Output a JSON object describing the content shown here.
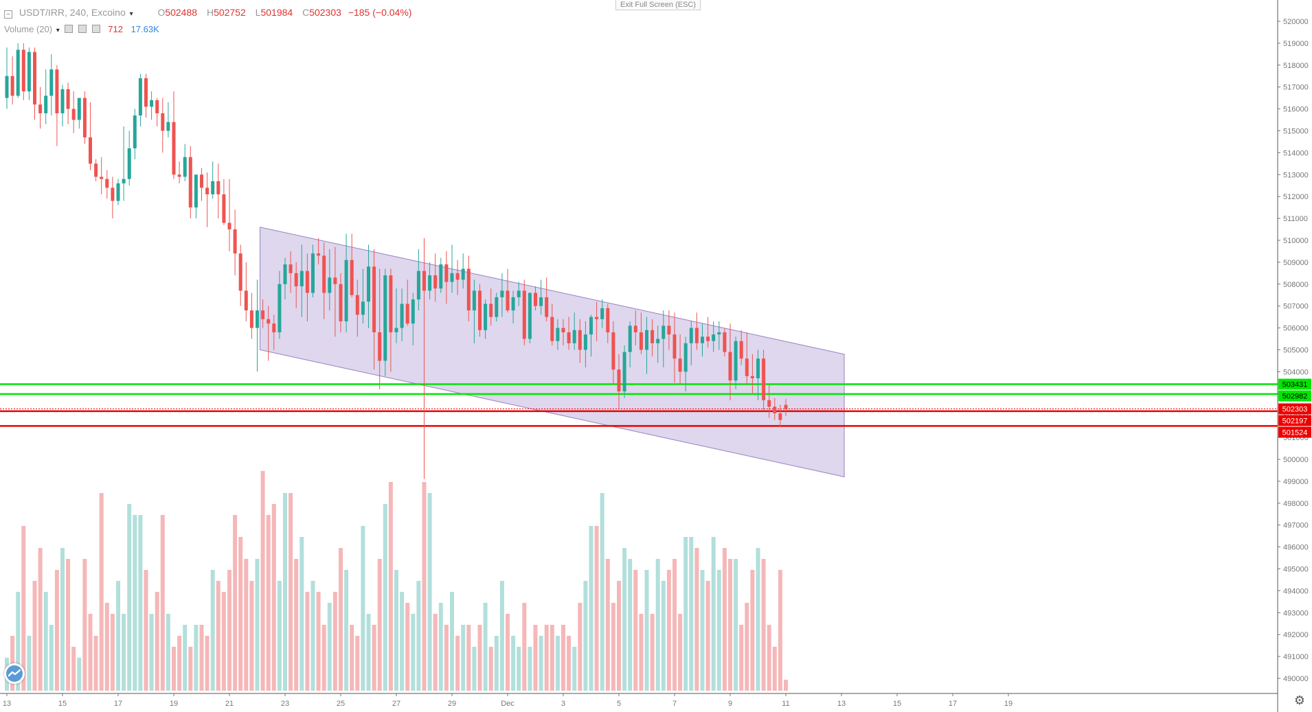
{
  "header": {
    "symbol": "USDT/IRR, 240, Excoino",
    "ohlc": {
      "o_key": "O",
      "o": "502488",
      "h_key": "H",
      "h": "502752",
      "l_key": "L",
      "l": "501984",
      "c_key": "C",
      "c": "502303"
    },
    "change": "−185 (−0.04%)",
    "volume_label": "Volume (20)",
    "volume_value": "712",
    "volume_ma": "17.63K"
  },
  "exit_fullscreen_label": "Exit Full Screen (ESC)",
  "icons": {
    "collapse": "collapse-icon",
    "chevron": "chevron-down-icon",
    "logo": "tradingview-logo-icon",
    "settings": "gear-icon"
  },
  "colors": {
    "up": "#26a69a",
    "down": "#ef5350",
    "vol_up": "#b2dfdb",
    "vol_down": "#f5b7b8",
    "channel_fill": "#d8d0ea",
    "channel_stroke": "#9680c0",
    "support_green": "#00e600",
    "resist_red": "#ee0000"
  },
  "chart_data": {
    "type": "candlestick",
    "symbol": "USDT/IRR",
    "timeframe": "240",
    "y_axis_ticks": [
      490000,
      491000,
      492000,
      493000,
      494000,
      495000,
      496000,
      497000,
      498000,
      499000,
      500000,
      501000,
      502000,
      503000,
      504000,
      505000,
      506000,
      507000,
      508000,
      509000,
      510000,
      511000,
      512000,
      513000,
      514000,
      515000,
      516000,
      517000,
      518000,
      519000,
      520000
    ],
    "x_axis_labels": [
      {
        "label": "13",
        "bar": 0
      },
      {
        "label": "15",
        "bar": 10
      },
      {
        "label": "17",
        "bar": 20
      },
      {
        "label": "19",
        "bar": 30
      },
      {
        "label": "21",
        "bar": 40
      },
      {
        "label": "23",
        "bar": 50
      },
      {
        "label": "25",
        "bar": 60
      },
      {
        "label": "27",
        "bar": 70
      },
      {
        "label": "29",
        "bar": 80
      },
      {
        "label": "Dec",
        "bar": 90
      },
      {
        "label": "3",
        "bar": 100
      },
      {
        "label": "5",
        "bar": 110
      },
      {
        "label": "7",
        "bar": 120
      },
      {
        "label": "9",
        "bar": 130
      },
      {
        "label": "11",
        "bar": 140
      },
      {
        "label": "13",
        "bar": 150
      },
      {
        "label": "15",
        "bar": 160
      },
      {
        "label": "17",
        "bar": 170
      },
      {
        "label": "19",
        "bar": 180
      }
    ],
    "price_labels": [
      {
        "value": 503431,
        "text": "503431",
        "color": "#00e600"
      },
      {
        "value": 502982,
        "text": "502982",
        "color": "#00e600"
      },
      {
        "value": 502303,
        "text": "502303",
        "color": "#ee0000"
      },
      {
        "value": 502197,
        "text": "502197",
        "color": "#ee0000"
      },
      {
        "value": 501524,
        "text": "501524",
        "color": "#ee0000"
      }
    ],
    "horizontal_lines": [
      {
        "value": 503431,
        "color": "#00e600"
      },
      {
        "value": 502982,
        "color": "#00e600"
      },
      {
        "value": 502197,
        "color": "#ee0000"
      },
      {
        "value": 501524,
        "color": "#ee0000"
      }
    ],
    "last_price_line": 502303,
    "channel": {
      "upper": [
        [
          45.5,
          510600
        ],
        [
          150.5,
          504800
        ]
      ],
      "lower": [
        [
          45.5,
          505000
        ],
        [
          150.5,
          499200
        ]
      ]
    },
    "candles": [
      [
        0,
        516500,
        518800,
        516000,
        517500,
        3
      ],
      [
        1,
        517500,
        518400,
        516200,
        516600,
        5
      ],
      [
        2,
        516600,
        519000,
        516500,
        518700,
        9
      ],
      [
        3,
        518700,
        519000,
        516400,
        516800,
        15
      ],
      [
        4,
        516800,
        518800,
        516400,
        518600,
        5
      ],
      [
        5,
        518600,
        518800,
        515500,
        516200,
        10
      ],
      [
        6,
        516200,
        517000,
        515100,
        515800,
        13
      ],
      [
        7,
        515800,
        517800,
        515300,
        516600,
        9
      ],
      [
        8,
        516600,
        518500,
        515700,
        517800,
        6
      ],
      [
        9,
        517800,
        518000,
        514300,
        515800,
        11
      ],
      [
        10,
        515800,
        517100,
        515200,
        516900,
        13
      ],
      [
        11,
        516900,
        517200,
        515300,
        516000,
        12
      ],
      [
        12,
        516000,
        516800,
        514900,
        515500,
        4
      ],
      [
        13,
        515500,
        516500,
        515100,
        516500,
        3
      ],
      [
        14,
        516500,
        516800,
        514400,
        514700,
        12
      ],
      [
        15,
        514700,
        516300,
        513200,
        513500,
        7
      ],
      [
        16,
        513500,
        513700,
        512700,
        512900,
        5
      ],
      [
        17,
        512900,
        513800,
        512100,
        512800,
        18
      ],
      [
        18,
        512800,
        513200,
        511900,
        512400,
        8
      ],
      [
        19,
        512400,
        512900,
        511000,
        511800,
        7
      ],
      [
        20,
        511800,
        512800,
        511600,
        512600,
        10
      ],
      [
        21,
        512600,
        515200,
        511800,
        512800,
        7
      ],
      [
        22,
        512800,
        515000,
        512500,
        514200,
        17
      ],
      [
        23,
        514200,
        516000,
        513700,
        515700,
        16
      ],
      [
        24,
        515700,
        517600,
        515200,
        517400,
        16
      ],
      [
        25,
        517400,
        517600,
        515600,
        516100,
        11
      ],
      [
        26,
        516100,
        516800,
        515500,
        516400,
        7
      ],
      [
        27,
        516400,
        516500,
        515200,
        515800,
        9
      ],
      [
        28,
        515800,
        516500,
        514000,
        515000,
        16
      ],
      [
        29,
        515000,
        516300,
        514700,
        515400,
        7
      ],
      [
        30,
        515400,
        516800,
        512800,
        513000,
        4
      ],
      [
        31,
        513000,
        513600,
        512600,
        512900,
        5
      ],
      [
        32,
        512900,
        514400,
        512700,
        513800,
        6
      ],
      [
        33,
        513800,
        514300,
        511000,
        511500,
        4
      ],
      [
        34,
        511500,
        513000,
        511000,
        513000,
        6
      ],
      [
        35,
        513000,
        513300,
        511800,
        512400,
        6
      ],
      [
        36,
        512400,
        513100,
        510600,
        512100,
        5
      ],
      [
        37,
        512100,
        513600,
        511900,
        512700,
        11
      ],
      [
        38,
        512700,
        513500,
        511000,
        512100,
        10
      ],
      [
        39,
        512100,
        512800,
        510700,
        510800,
        9
      ],
      [
        40,
        510800,
        512800,
        509500,
        510500,
        11
      ],
      [
        41,
        510500,
        511400,
        508400,
        509400,
        16
      ],
      [
        42,
        509400,
        509800,
        507000,
        507700,
        14
      ],
      [
        43,
        507700,
        509000,
        506300,
        506800,
        12
      ],
      [
        44,
        506800,
        507600,
        505500,
        506000,
        10
      ],
      [
        45,
        506000,
        508200,
        504000,
        506800,
        12
      ],
      [
        46,
        506800,
        507300,
        506000,
        506400,
        20
      ],
      [
        47,
        506400,
        507000,
        504500,
        506200,
        16
      ],
      [
        48,
        506200,
        506600,
        505000,
        505800,
        17
      ],
      [
        49,
        505800,
        508600,
        505500,
        508000,
        10
      ]
    ],
    "candles2": [
      [
        50,
        508000,
        509200,
        507300,
        508900,
        18
      ],
      [
        51,
        508900,
        509500,
        507600,
        508500,
        18
      ],
      [
        52,
        508500,
        509000,
        506900,
        507900,
        12
      ],
      [
        53,
        507900,
        509800,
        506500,
        508600,
        14
      ],
      [
        54,
        508600,
        509400,
        506300,
        507600,
        9
      ],
      [
        55,
        507600,
        509800,
        507400,
        509400,
        10
      ],
      [
        56,
        509400,
        510100,
        508900,
        509300,
        9
      ],
      [
        57,
        509300,
        509900,
        506400,
        507600,
        6
      ],
      [
        58,
        507600,
        509600,
        506800,
        508300,
        8
      ],
      [
        59,
        508300,
        509700,
        505600,
        508000,
        9
      ],
      [
        60,
        508000,
        508500,
        505800,
        506300,
        13
      ],
      [
        61,
        506300,
        510300,
        505800,
        509100,
        11
      ],
      [
        62,
        509100,
        510300,
        507400,
        507500,
        6
      ],
      [
        63,
        507500,
        508200,
        505600,
        506600,
        5
      ],
      [
        64,
        506600,
        508700,
        506200,
        507200,
        15
      ],
      [
        65,
        507200,
        509800,
        506000,
        508800,
        7
      ],
      [
        66,
        508800,
        509600,
        504100,
        505800,
        6
      ],
      [
        67,
        505800,
        508700,
        503200,
        504500,
        12
      ],
      [
        68,
        504500,
        508700,
        503800,
        508400,
        17
      ],
      [
        69,
        508400,
        508700,
        504000,
        505800,
        19
      ],
      [
        70,
        505800,
        507800,
        505300,
        506000,
        11
      ],
      [
        71,
        506000,
        507800,
        505400,
        507100,
        9
      ],
      [
        72,
        507100,
        508200,
        506100,
        506200,
        8
      ],
      [
        73,
        506200,
        507600,
        505200,
        507300,
        7
      ],
      [
        74,
        507300,
        509600,
        506800,
        508600,
        10
      ],
      [
        75,
        508600,
        510100,
        499100,
        507700,
        19
      ],
      [
        76,
        507700,
        509000,
        507300,
        508400,
        18
      ],
      [
        77,
        508400,
        509400,
        507200,
        507800,
        7
      ],
      [
        78,
        507800,
        509200,
        507600,
        508900,
        8
      ],
      [
        79,
        508900,
        509500,
        507100,
        508100,
        6
      ]
    ],
    "candles3": [
      [
        80,
        508100,
        509800,
        507600,
        508500,
        9
      ],
      [
        81,
        508500,
        509100,
        507500,
        508200,
        5
      ],
      [
        82,
        508200,
        509400,
        507800,
        508700,
        6
      ],
      [
        83,
        508700,
        509300,
        506300,
        506800,
        6
      ],
      [
        84,
        506800,
        508200,
        505300,
        507700,
        4
      ],
      [
        85,
        507700,
        508000,
        505600,
        505900,
        6
      ],
      [
        86,
        505900,
        507300,
        505500,
        507100,
        8
      ],
      [
        87,
        507100,
        507800,
        506100,
        506500,
        4
      ],
      [
        88,
        506500,
        507600,
        506300,
        507400,
        5
      ],
      [
        89,
        507400,
        508500,
        506500,
        507700,
        10
      ],
      [
        90,
        507700,
        508700,
        506700,
        506800,
        7
      ],
      [
        91,
        506800,
        507700,
        506200,
        507400,
        5
      ],
      [
        92,
        507400,
        508100,
        507000,
        507700,
        4
      ],
      [
        93,
        507700,
        508200,
        505200,
        505500,
        8
      ],
      [
        94,
        505500,
        507600,
        505300,
        507600,
        4
      ],
      [
        95,
        507600,
        507900,
        506800,
        507000,
        6
      ],
      [
        96,
        507000,
        508200,
        506600,
        507400,
        5
      ],
      [
        97,
        507400,
        508300,
        506300,
        506500,
        6
      ],
      [
        98,
        506500,
        507100,
        505200,
        505400,
        6
      ],
      [
        99,
        505400,
        506400,
        505000,
        506000,
        5
      ]
    ],
    "candles4": [
      [
        100,
        506000,
        506400,
        505200,
        505800,
        6
      ],
      [
        101,
        505800,
        506500,
        505000,
        505300,
        5
      ],
      [
        102,
        505300,
        506700,
        505000,
        505900,
        4
      ],
      [
        103,
        505900,
        506400,
        504400,
        505000,
        8
      ],
      [
        104,
        505000,
        506300,
        504200,
        505700,
        10
      ],
      [
        105,
        505700,
        506600,
        504700,
        506500,
        15
      ],
      [
        106,
        506500,
        507200,
        505400,
        506400,
        15
      ],
      [
        107,
        506400,
        507300,
        506000,
        506900,
        18
      ],
      [
        108,
        506900,
        507100,
        505300,
        505800,
        12
      ],
      [
        109,
        505800,
        506300,
        503400,
        504100,
        8
      ],
      [
        110,
        504100,
        504800,
        502300,
        503100,
        10
      ],
      [
        111,
        503100,
        505200,
        502800,
        504900,
        13
      ],
      [
        112,
        504900,
        506300,
        504200,
        506100,
        12
      ],
      [
        113,
        506100,
        506800,
        505200,
        505800,
        11
      ],
      [
        114,
        505800,
        506700,
        504800,
        505000,
        7
      ],
      [
        115,
        505000,
        506500,
        503900,
        505900,
        11
      ],
      [
        116,
        505900,
        506400,
        504700,
        505300,
        7
      ],
      [
        117,
        505300,
        506100,
        504400,
        505500,
        12
      ],
      [
        118,
        505500,
        506800,
        504200,
        506100,
        10
      ],
      [
        119,
        506100,
        506800,
        505000,
        505700,
        11
      ]
    ],
    "candles5": [
      [
        120,
        505700,
        506700,
        503500,
        504600,
        12
      ],
      [
        121,
        504600,
        505700,
        503400,
        504000,
        7
      ],
      [
        122,
        504000,
        505600,
        503100,
        505300,
        14
      ],
      [
        123,
        505300,
        506300,
        504300,
        506000,
        14
      ],
      [
        124,
        506000,
        506700,
        505000,
        505300,
        13
      ],
      [
        125,
        505300,
        506200,
        504700,
        505600,
        11
      ],
      [
        126,
        505600,
        506500,
        505100,
        505400,
        10
      ],
      [
        127,
        505400,
        506300,
        504900,
        505700,
        14
      ],
      [
        128,
        505700,
        506300,
        505000,
        505800,
        11
      ],
      [
        129,
        505800,
        506000,
        504700,
        504900,
        13
      ],
      [
        130,
        504900,
        506200,
        502700,
        503600,
        12
      ],
      [
        131,
        503600,
        505600,
        503200,
        505400,
        12
      ],
      [
        132,
        505400,
        505900,
        504300,
        504600,
        6
      ],
      [
        133,
        504600,
        505800,
        503400,
        503800,
        8
      ],
      [
        134,
        503800,
        504800,
        503000,
        503700,
        11
      ],
      [
        135,
        503700,
        505000,
        502700,
        504600,
        13
      ],
      [
        136,
        504600,
        505000,
        502200,
        502700,
        12
      ],
      [
        137,
        502700,
        503400,
        501900,
        502400,
        6
      ],
      [
        138,
        502400,
        502800,
        501800,
        502100,
        4
      ],
      [
        139,
        502100,
        502500,
        501500,
        501800,
        11
      ],
      [
        140,
        502488,
        502752,
        501984,
        502303,
        1
      ]
    ]
  }
}
